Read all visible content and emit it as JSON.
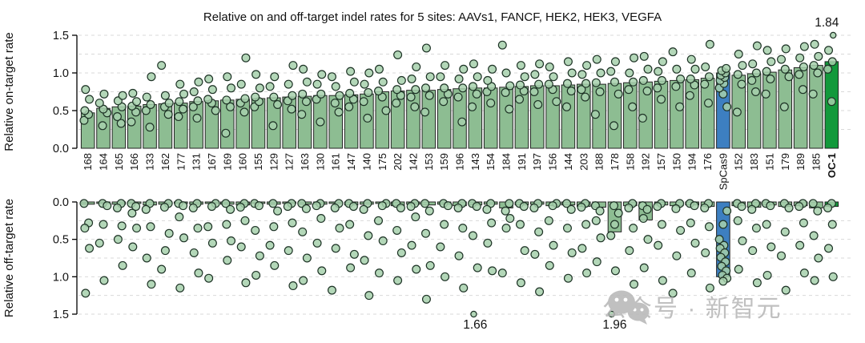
{
  "title": "Relative on and off-target indel rates for 5 sites: AAVs1, FANCF, HEK2, HEK3, VEGFA",
  "axes": {
    "on_label": "Relative on-target rate",
    "off_label": "Relative off-target rate",
    "tick_labels": [
      "0.0",
      "0.5",
      "1.0",
      "1.5"
    ],
    "tick_values": [
      0,
      0.5,
      1.0,
      1.5
    ],
    "minor_step": 0.25,
    "ylim": [
      0,
      1.5
    ],
    "off_axis_inverted": true
  },
  "colors": {
    "bar_green": "#8dbd92",
    "bar_blue": "#3d7fc1",
    "bar_dark_green": "#12993b",
    "bar_stroke": "#222222",
    "point_fill": "#a6d0ab",
    "point_stroke": "#1e3326",
    "grid": "#d9d9d9",
    "text": "#111111",
    "watermark": "#b6b6b6"
  },
  "watermark": {
    "text": "公众号 · 新智元",
    "icon": "wechat-icon"
  },
  "chart_data": {
    "type": "bar",
    "title": "Relative on and off-target indel rates for 5 sites: AAVs1, FANCF, HEK2, HEK3, VEGFA",
    "categories": [
      "168",
      "164",
      "165",
      "166",
      "133",
      "162",
      "177",
      "131",
      "167",
      "169",
      "160",
      "155",
      "129",
      "127",
      "163",
      "130",
      "161",
      "147",
      "140",
      "175",
      "202",
      "142",
      "153",
      "159",
      "196",
      "143",
      "154",
      "184",
      "191",
      "197",
      "156",
      "144",
      "203",
      "188",
      "178",
      "158",
      "192",
      "157",
      "150",
      "194",
      "176",
      "SpCas9",
      "152",
      "183",
      "151",
      "179",
      "189",
      "185",
      "OC-1"
    ],
    "highlighted": {
      "SpCas9": "blue",
      "OC-1": "dark_green"
    },
    "series": [
      {
        "name": "Relative on-target rate",
        "panel": "on",
        "values": [
          0.47,
          0.53,
          0.55,
          0.56,
          0.58,
          0.59,
          0.6,
          0.62,
          0.63,
          0.64,
          0.65,
          0.66,
          0.67,
          0.68,
          0.69,
          0.7,
          0.7,
          0.71,
          0.72,
          0.75,
          0.76,
          0.77,
          0.77,
          0.78,
          0.79,
          0.8,
          0.8,
          0.81,
          0.82,
          0.83,
          0.83,
          0.84,
          0.85,
          0.85,
          0.86,
          0.87,
          0.88,
          0.89,
          0.9,
          0.91,
          0.93,
          1.0,
          0.97,
          0.99,
          1.01,
          1.04,
          1.07,
          1.1,
          1.15
        ],
        "points": [
          [
            0.37,
            0.45,
            0.5,
            0.65,
            0.78
          ],
          [
            0.3,
            0.47,
            0.52,
            0.6,
            0.72
          ],
          [
            0.33,
            0.42,
            0.55,
            0.63,
            0.7
          ],
          [
            0.35,
            0.48,
            0.56,
            0.62,
            0.73
          ],
          [
            0.28,
            0.5,
            0.58,
            0.68,
            0.95
          ],
          [
            0.45,
            0.55,
            0.6,
            0.7,
            1.1
          ],
          [
            0.42,
            0.52,
            0.62,
            0.72,
            0.85
          ],
          [
            0.4,
            0.55,
            0.63,
            0.75,
            0.88
          ],
          [
            0.5,
            0.6,
            0.65,
            0.78,
            0.92
          ],
          [
            0.2,
            0.55,
            0.64,
            0.8,
            0.95
          ],
          [
            0.48,
            0.6,
            0.66,
            0.85,
            1.2
          ],
          [
            0.55,
            0.62,
            0.68,
            0.8,
            0.98
          ],
          [
            0.3,
            0.58,
            0.68,
            0.82,
            0.95
          ],
          [
            0.52,
            0.63,
            0.7,
            0.85,
            1.1
          ],
          [
            0.45,
            0.62,
            0.72,
            0.88,
            1.05
          ],
          [
            0.35,
            0.65,
            0.72,
            0.85,
            0.98
          ],
          [
            0.48,
            0.6,
            0.7,
            0.82,
            0.95
          ],
          [
            0.55,
            0.65,
            0.73,
            0.88,
            1.02
          ],
          [
            0.4,
            0.62,
            0.74,
            0.85,
            1.0
          ],
          [
            0.5,
            0.68,
            0.76,
            0.88,
            1.05
          ],
          [
            0.6,
            0.7,
            0.78,
            0.9,
            1.24
          ],
          [
            0.55,
            0.68,
            0.78,
            0.92,
            1.08
          ],
          [
            0.48,
            0.7,
            0.8,
            0.95,
            1.33
          ],
          [
            0.62,
            0.72,
            0.8,
            0.95,
            1.1
          ],
          [
            0.35,
            0.68,
            0.8,
            0.92,
            1.05
          ],
          [
            0.55,
            0.72,
            0.82,
            0.95,
            1.12
          ],
          [
            0.6,
            0.75,
            0.82,
            0.9,
            1.05
          ],
          [
            0.52,
            0.74,
            0.83,
            1.0,
            1.37
          ],
          [
            0.65,
            0.76,
            0.84,
            0.95,
            1.1
          ],
          [
            0.58,
            0.75,
            0.85,
            0.98,
            1.12
          ],
          [
            0.62,
            0.78,
            0.85,
            0.95,
            1.08
          ],
          [
            0.55,
            0.76,
            0.86,
            1.0,
            1.15
          ],
          [
            0.68,
            0.78,
            0.86,
            0.98,
            1.1
          ],
          [
            0.45,
            0.75,
            0.87,
            1.0,
            1.18
          ],
          [
            0.3,
            0.72,
            0.88,
            1.02,
            1.15
          ],
          [
            0.55,
            0.78,
            0.88,
            1.0,
            1.2
          ],
          [
            0.4,
            0.76,
            0.9,
            1.05,
            1.22
          ],
          [
            0.65,
            0.8,
            0.9,
            1.02,
            1.15
          ],
          [
            0.55,
            0.82,
            0.92,
            1.05,
            1.28
          ],
          [
            0.7,
            0.84,
            0.92,
            1.05,
            1.18
          ],
          [
            0.6,
            0.85,
            0.95,
            1.08,
            1.38
          ],
          [
            0.55,
            0.72,
            0.8,
            0.86,
            0.9,
            0.94,
            0.97,
            1.0,
            1.03,
            1.06
          ],
          [
            0.48,
            0.85,
            0.98,
            1.1,
            1.25
          ],
          [
            0.75,
            0.9,
            1.0,
            1.12,
            1.36
          ],
          [
            0.72,
            0.92,
            1.02,
            1.15,
            1.3
          ],
          [
            0.55,
            0.95,
            1.05,
            1.18,
            1.32
          ],
          [
            0.78,
            0.98,
            1.08,
            1.2,
            1.35
          ],
          [
            0.72,
            1.0,
            1.1,
            1.22,
            1.38
          ],
          [
            0.62,
            1.05,
            1.15,
            1.3,
            1.84
          ]
        ]
      },
      {
        "name": "Relative off-target rate",
        "panel": "off",
        "values": [
          0.03,
          0.02,
          0.03,
          0.02,
          0.04,
          0.03,
          0.02,
          0.03,
          0.02,
          0.03,
          0.04,
          0.02,
          0.03,
          0.02,
          0.03,
          0.03,
          0.02,
          0.04,
          0.03,
          0.02,
          0.05,
          0.03,
          0.04,
          0.03,
          0.05,
          0.04,
          0.03,
          0.08,
          0.04,
          0.03,
          0.05,
          0.04,
          0.06,
          0.07,
          0.4,
          0.05,
          0.24,
          0.04,
          0.05,
          0.04,
          0.06,
          1.0,
          0.05,
          0.07,
          0.04,
          0.06,
          0.05,
          0.08,
          0.06
        ],
        "points": [
          [
            0.02,
            0.28,
            0.35,
            0.62,
            1.22
          ],
          [
            0.02,
            0.05,
            0.3,
            0.55,
            1.05
          ],
          [
            0.02,
            0.08,
            0.32,
            0.5,
            0.85
          ],
          [
            0.02,
            0.06,
            0.15,
            0.35,
            0.6
          ],
          [
            0.02,
            0.1,
            0.33,
            0.75,
            1.1
          ],
          [
            0.02,
            0.07,
            0.42,
            0.65,
            0.9
          ],
          [
            0.02,
            0.05,
            0.2,
            0.48,
            1.15
          ],
          [
            0.02,
            0.08,
            0.35,
            0.68,
            0.95
          ],
          [
            0.02,
            0.06,
            0.33,
            0.55,
            1.02
          ],
          [
            0.02,
            0.1,
            0.3,
            0.52,
            0.78
          ],
          [
            0.02,
            0.07,
            0.25,
            0.6,
            1.08
          ],
          [
            0.02,
            0.05,
            0.38,
            0.72,
            0.98
          ],
          [
            0.02,
            0.12,
            0.33,
            0.58,
            0.85
          ],
          [
            0.02,
            0.06,
            0.28,
            0.65,
            1.12
          ],
          [
            0.02,
            0.09,
            0.4,
            0.75,
            1.05
          ],
          [
            0.02,
            0.05,
            0.22,
            0.55,
            0.92
          ],
          [
            0.02,
            0.08,
            0.35,
            0.62,
            1.18
          ],
          [
            0.02,
            0.06,
            0.3,
            0.7,
            0.88
          ],
          [
            0.02,
            0.1,
            0.45,
            0.78,
            1.25
          ],
          [
            0.02,
            0.05,
            0.25,
            0.52,
            0.95
          ],
          [
            0.02,
            0.08,
            0.38,
            0.68,
            1.05
          ],
          [
            0.02,
            0.06,
            0.2,
            0.58,
            0.9
          ],
          [
            0.02,
            0.12,
            0.42,
            0.85,
            1.3
          ],
          [
            0.02,
            0.05,
            0.3,
            0.6,
            1.0
          ],
          [
            0.02,
            0.08,
            0.35,
            0.72,
            1.15
          ],
          [
            0.02,
            0.06,
            0.45,
            0.88,
            1.66
          ],
          [
            0.02,
            0.1,
            0.28,
            0.55,
            0.92
          ],
          [
            0.02,
            0.12,
            0.22,
            0.35,
            0.95
          ],
          [
            0.02,
            0.06,
            0.3,
            0.65,
            1.08
          ],
          [
            0.02,
            0.08,
            0.4,
            0.7,
            1.2
          ],
          [
            0.02,
            0.05,
            0.25,
            0.58,
            0.85
          ],
          [
            0.02,
            0.1,
            0.35,
            0.68,
            1.02
          ],
          [
            0.02,
            0.07,
            0.3,
            0.62,
            0.95
          ],
          [
            0.05,
            0.12,
            0.25,
            0.48,
            0.8
          ],
          [
            0.05,
            0.15,
            0.3,
            0.45,
            0.92,
            1.96
          ],
          [
            0.02,
            0.08,
            0.35,
            0.65,
            1.1
          ],
          [
            0.05,
            0.1,
            0.22,
            0.5,
            0.88
          ],
          [
            0.02,
            0.06,
            0.3,
            0.58,
            1.05
          ],
          [
            0.02,
            0.09,
            0.38,
            0.72,
            1.22
          ],
          [
            0.02,
            0.05,
            0.28,
            0.55,
            0.95
          ],
          [
            0.02,
            0.08,
            0.33,
            0.68,
            1.15
          ],
          [
            0.12,
            0.3,
            0.5,
            0.58,
            0.62,
            0.68,
            0.74,
            0.8,
            0.86,
            0.92,
            0.98,
            1.02,
            1.06
          ],
          [
            0.02,
            0.06,
            0.25,
            0.52,
            0.9
          ],
          [
            0.02,
            0.1,
            0.35,
            0.65,
            1.08
          ],
          [
            0.02,
            0.05,
            0.3,
            0.6,
            0.98
          ],
          [
            0.02,
            0.08,
            0.4,
            0.72,
            1.18
          ],
          [
            0.02,
            0.06,
            0.28,
            0.58,
            0.95
          ],
          [
            0.02,
            0.12,
            0.45,
            0.75,
            1.05
          ],
          [
            0.02,
            0.08,
            0.3,
            0.62,
            1.0
          ]
        ]
      }
    ],
    "annotations": [
      {
        "panel": "on",
        "category": "OC-1",
        "label": "1.84"
      },
      {
        "panel": "off",
        "category": "143",
        "label": "1.66"
      },
      {
        "panel": "off",
        "category": "178",
        "label": "1.96"
      }
    ]
  }
}
